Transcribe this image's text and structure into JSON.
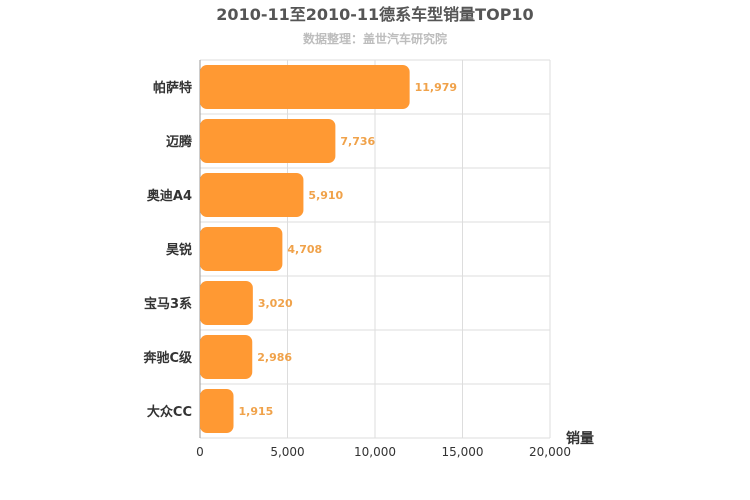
{
  "chart_data": {
    "type": "bar",
    "orientation": "horizontal",
    "title": "2010-11至2010-11德系车型销量TOP10",
    "subtitle": "数据整理：盖世汽车研究院",
    "xlabel": "销量",
    "ylabel": "",
    "categories": [
      "帕萨特",
      "迈腾",
      "奥迪A4",
      "昊锐",
      "宝马3系",
      "奔驰C级",
      "大众CC"
    ],
    "values": [
      11979,
      7736,
      5910,
      4708,
      3020,
      2986,
      1915
    ],
    "value_labels": [
      "11,979",
      "7,736",
      "5,910",
      "4,708",
      "3,020",
      "2,986",
      "1,915"
    ],
    "xlim": [
      0,
      20000
    ],
    "xticks": [
      0,
      5000,
      10000,
      15000,
      20000
    ],
    "xtick_labels": [
      "0",
      "5,000",
      "10,000",
      "15,000",
      "20,000"
    ],
    "grid": true,
    "bar_color": "#ff9933",
    "label_color": "#f0a24a"
  }
}
